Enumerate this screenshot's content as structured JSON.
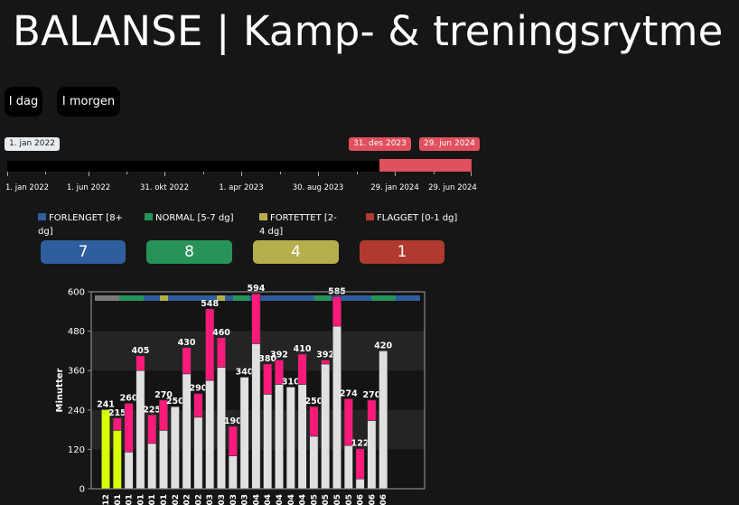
{
  "title": "BALANSE | Kamp- & treningsrytme",
  "buttons": {
    "today": "I dag",
    "tomorrow": "I morgen"
  },
  "range_slider": {
    "start_label": "1. jan 2022",
    "selected_start_label": "31. des 2023",
    "selected_end_label": "29. jun 2024",
    "axis_labels": [
      "1. jan 2022",
      "1. jun 2022",
      "31. okt 2022",
      "1. apr 2023",
      "30. aug 2023",
      "29. jan 2024",
      "29. jun 2024"
    ]
  },
  "legend": [
    {
      "label": "FORLENGET [8+ dg]",
      "color": "#2e5e9e"
    },
    {
      "label": "NORMAL [5-7 dg]",
      "color": "#279358"
    },
    {
      "label": "FORTETTET [2-4 dg]",
      "color": "#b5ae4c"
    },
    {
      "label": "FLAGGET [0-1 dg]",
      "color": "#b03a2e"
    }
  ],
  "cards": [
    {
      "value": "7",
      "color": "#2e5e9e"
    },
    {
      "value": "8",
      "color": "#279358"
    },
    {
      "value": "4",
      "color": "#b5ae4c"
    },
    {
      "value": "1",
      "color": "#b03a2e"
    }
  ],
  "chart_data": {
    "type": "bar",
    "ylabel": "Minutter",
    "ylim": [
      0,
      600
    ],
    "yticks": [
      0,
      120,
      240,
      360,
      480,
      600
    ],
    "x_tick_labels": [
      "12",
      "01",
      "01",
      "01",
      "01",
      "01",
      "02",
      "02",
      "02",
      "03",
      "03",
      "03",
      "03",
      "04",
      "04",
      "04",
      "04",
      "04",
      "05",
      "05",
      "05",
      "05",
      "06",
      "06",
      "06"
    ],
    "totals": [
      241,
      215,
      260,
      405,
      225,
      270,
      250,
      430,
      290,
      548,
      460,
      190,
      340,
      594,
      380,
      392,
      310,
      410,
      250,
      392,
      585,
      274,
      122,
      270,
      420
    ],
    "series": [
      {
        "name": "",
        "values": [
          241,
          178,
          112,
          360,
          138,
          178,
          250,
          350,
          218,
          330,
          370,
          100,
          340,
          442,
          288,
          318,
          310,
          318,
          160,
          380,
          495,
          132,
          30,
          208,
          420
        ]
      },
      {
        "name": "",
        "values": [
          0,
          37,
          148,
          45,
          87,
          92,
          0,
          80,
          72,
          218,
          90,
          90,
          0,
          152,
          92,
          74,
          0,
          92,
          90,
          12,
          90,
          142,
          92,
          62,
          0
        ]
      }
    ],
    "bar_colors_first_series": [
      "#d8ff00",
      "#d8ff00",
      "#e0e0e0",
      "#e0e0e0",
      "#e0e0e0",
      "#e0e0e0",
      "#e0e0e0",
      "#e0e0e0",
      "#e0e0e0",
      "#e0e0e0",
      "#e0e0e0",
      "#e0e0e0",
      "#e0e0e0",
      "#e0e0e0",
      "#e0e0e0",
      "#e0e0e0",
      "#e0e0e0",
      "#e0e0e0",
      "#e0e0e0",
      "#e0e0e0",
      "#e0e0e0",
      "#e0e0e0",
      "#e0e0e0",
      "#e0e0e0",
      "#e0e0e0"
    ],
    "second_series_color": "#ff1a7a",
    "top_strip": [
      {
        "color": "#7a7a7a",
        "from": 0,
        "to": 3
      },
      {
        "color": "#279358",
        "from": 3,
        "to": 6
      },
      {
        "color": "#2e5e9e",
        "from": 6,
        "to": 8
      },
      {
        "color": "#b5ae4c",
        "from": 8,
        "to": 9
      },
      {
        "color": "#2e5e9e",
        "from": 9,
        "to": 15
      },
      {
        "color": "#b5ae4c",
        "from": 15,
        "to": 16
      },
      {
        "color": "#2e5e9e",
        "from": 16,
        "to": 17
      },
      {
        "color": "#279358",
        "from": 17,
        "to": 19
      },
      {
        "color": "#2e5e9e",
        "from": 19,
        "to": 27
      },
      {
        "color": "#279358",
        "from": 27,
        "to": 29
      },
      {
        "color": "#2e5e9e",
        "from": 29,
        "to": 34
      },
      {
        "color": "#279358",
        "from": 34,
        "to": 37
      },
      {
        "color": "#2e5e9e",
        "from": 37,
        "to": 40
      }
    ],
    "grid": true
  }
}
